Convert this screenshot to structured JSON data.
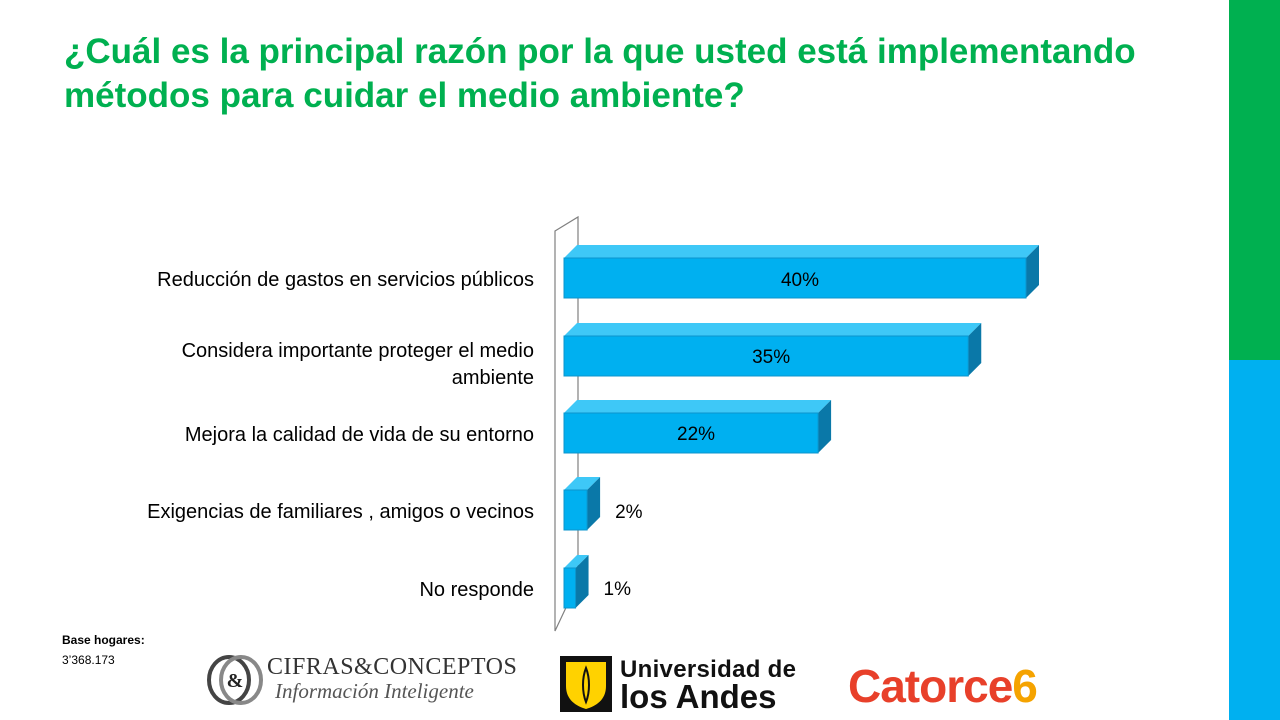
{
  "slide": {
    "title": "¿Cuál es la principal razón por la que usted está implementando métodos para cuidar el medio ambiente?",
    "base_label": "Base hogares:",
    "base_value": "3’368.173",
    "accent_green": "#00b050",
    "accent_blue": "#00b0f0"
  },
  "chart_data": {
    "type": "bar",
    "orientation": "horizontal",
    "title": "",
    "xlabel": "",
    "ylabel": "",
    "xlim": [
      0,
      45
    ],
    "grid": false,
    "bar_color": "#00b0f0",
    "categories": [
      "Reducción de gastos en servicios públicos",
      "Considera importante proteger el medio ambiente",
      "Mejora la calidad de vida de su entorno",
      "Exigencias de familiares , amigos o vecinos",
      "No responde"
    ],
    "category_lines": [
      [
        "Reducción de gastos en servicios públicos"
      ],
      [
        "Considera importante proteger el medio",
        "ambiente"
      ],
      [
        "Mejora la calidad de vida de su entorno"
      ],
      [
        "Exigencias de familiares , amigos o vecinos"
      ],
      [
        "No responde"
      ]
    ],
    "values": [
      40,
      35,
      22,
      2,
      1
    ],
    "value_labels": [
      "40%",
      "35%",
      "22%",
      "2%",
      "1%"
    ]
  },
  "logos": {
    "cifras_line1": "CIFRAS&CONCEPTOS",
    "cifras_line2": "Información Inteligente",
    "cifras_mark": "&",
    "andes_line1": "Universidad de",
    "andes_line2": "los Andes",
    "catorce": "Catorce",
    "catorce_num": "6"
  }
}
